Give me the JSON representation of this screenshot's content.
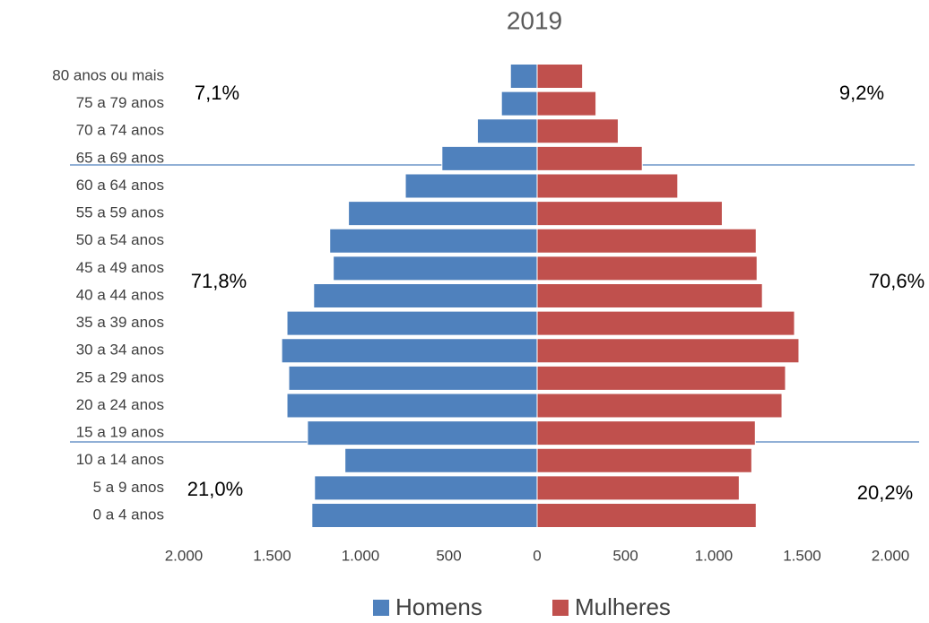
{
  "chart_data": {
    "type": "pyramid",
    "title": "2019",
    "categories": [
      "0 a 4 anos",
      "5 a 9 anos",
      "10 a 14 anos",
      "15 a 19 anos",
      "20 a 24 anos",
      "25 a 29 anos",
      "30 a 34 anos",
      "35 a 39 anos",
      "40 a 44 anos",
      "45 a 49 anos",
      "50 a 54 anos",
      "55 a 59 anos",
      "60 a 64 anos",
      "65 a 69 anos",
      "70 a 74 anos",
      "75 a 79 anos",
      "80 anos ou mais"
    ],
    "series": [
      {
        "name": "Homens",
        "color": "#4f81bd",
        "values": [
          -1275,
          -1260,
          -1088,
          -1300,
          -1416,
          -1406,
          -1446,
          -1416,
          -1265,
          -1154,
          -1174,
          -1068,
          -746,
          -539,
          -338,
          -202,
          -151
        ]
      },
      {
        "name": "Mulheres",
        "color": "#c0504d",
        "values": [
          1240,
          1144,
          1215,
          1235,
          1386,
          1406,
          1482,
          1457,
          1275,
          1245,
          1240,
          1048,
          796,
          595,
          459,
          333,
          257
        ]
      }
    ],
    "xlim": [
      -2000,
      2000
    ],
    "xticks": [
      {
        "value": -2000,
        "label": "2.000"
      },
      {
        "value": -1500,
        "label": "1.500"
      },
      {
        "value": -1000,
        "label": "1.000"
      },
      {
        "value": -500,
        "label": "500"
      },
      0,
      500,
      {
        "value": 1000,
        "label": "1.000"
      },
      {
        "value": 1500,
        "label": "1.500"
      },
      {
        "value": 2000,
        "label": "2.000"
      }
    ],
    "annotations": [
      "7,1%",
      "9,2%",
      "71,8%",
      "70,6%",
      "21,0%",
      "20,2%"
    ],
    "legend": "bottom"
  }
}
